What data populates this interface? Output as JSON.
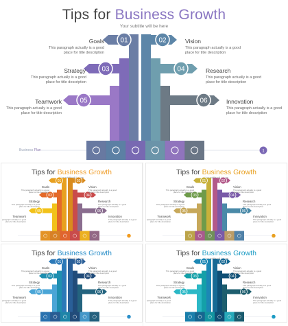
{
  "main": {
    "title_a": "Tips for ",
    "title_b": "Business Growth",
    "subtitle": "Your subtitle will be here",
    "footer_a": "Business ",
    "footer_b": "Plan",
    "page_no": "1",
    "items": [
      {
        "num": "01",
        "label": "Goals",
        "desc": "This paragraph actually is a good place for title description",
        "color": "#6b7ea5"
      },
      {
        "num": "02",
        "label": "Vision",
        "desc": "This paragraph actually is a good place for title description",
        "color": "#5d86a8"
      },
      {
        "num": "03",
        "label": "Strategy",
        "desc": "This paragraph actually is a good place for title description",
        "color": "#7e6bb8"
      },
      {
        "num": "04",
        "label": "Research",
        "desc": "This paragraph actually is a good place for title description",
        "color": "#6f9eae"
      },
      {
        "num": "05",
        "label": "Teamwork",
        "desc": "This paragraph actually is a good place for title description",
        "color": "#9a78c6"
      },
      {
        "num": "06",
        "label": "Innovation",
        "desc": "This paragraph actually is a good place for title description",
        "color": "#6d7a85"
      }
    ],
    "icons": [
      "team-icon",
      "network-icon",
      "target-icon",
      "chess-icon",
      "chart-icon",
      "lightbulb-icon"
    ],
    "accent": "#7b68b5",
    "title_accent": "#8a76c2"
  },
  "variants": [
    {
      "name": "orange",
      "title_accent": "#f0a030",
      "colors": [
        "#e8a020",
        "#d98b1e",
        "#e46a2a",
        "#c94b4b",
        "#f2c21a",
        "#8a6d8f"
      ],
      "dot": "#f29b1e"
    },
    {
      "name": "multi",
      "title_accent": "#e8a020",
      "colors": [
        "#c8b13a",
        "#b35a8a",
        "#6e9b4a",
        "#7a5aa8",
        "#c7a85a",
        "#4a8aa8"
      ],
      "dot": "#e8a020"
    },
    {
      "name": "blue",
      "title_accent": "#2a8fc9",
      "colors": [
        "#2b79b8",
        "#2a5f98",
        "#1f8fb0",
        "#214c7a",
        "#4aa5d6",
        "#24647f"
      ],
      "dot": "#2a8fc9"
    },
    {
      "name": "teal",
      "title_accent": "#1b9bc4",
      "colors": [
        "#1c87b5",
        "#176a95",
        "#14a0a8",
        "#0f4f75",
        "#2bb8c6",
        "#1d5e6e"
      ],
      "dot": "#1b9bc4"
    }
  ]
}
